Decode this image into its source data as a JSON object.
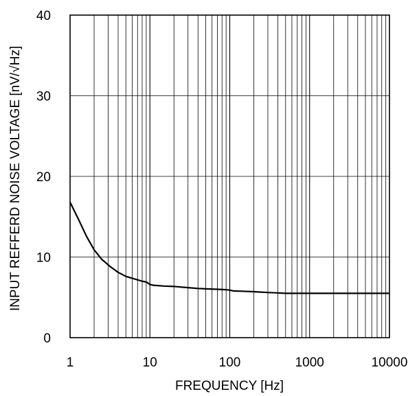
{
  "chart_data": {
    "type": "line",
    "title": "",
    "xlabel": "FREQUENCY [Hz]",
    "ylabel": "INPUT REFFERD NOISE VOLTAGE [nV/√Hz]",
    "x_scale": "log",
    "xlim": [
      1,
      10000
    ],
    "ylim": [
      0,
      40
    ],
    "x_ticks": [
      1,
      10,
      100,
      1000,
      10000
    ],
    "x_tick_labels": [
      "1",
      "10",
      "100",
      "1000",
      "10000"
    ],
    "y_ticks": [
      0,
      10,
      20,
      30,
      40
    ],
    "y_tick_labels": [
      "0",
      "10",
      "20",
      "30",
      "40"
    ],
    "grid": true,
    "line_color": "#000000",
    "series": [
      {
        "x": [
          1,
          1.3,
          1.6,
          2.0,
          2.5,
          3.2,
          4.0,
          5.0,
          6.3,
          8.0,
          9.0,
          10,
          11,
          15,
          20,
          30,
          40,
          50,
          70,
          90,
          100,
          110,
          150,
          200,
          300,
          400,
          500,
          700,
          1000,
          2000,
          5000,
          10000
        ],
        "y": [
          16.8,
          14.5,
          12.6,
          10.9,
          9.7,
          8.8,
          8.1,
          7.6,
          7.3,
          7.0,
          6.9,
          6.6,
          6.5,
          6.4,
          6.35,
          6.2,
          6.1,
          6.05,
          6.0,
          5.95,
          5.9,
          5.8,
          5.75,
          5.7,
          5.6,
          5.55,
          5.5,
          5.5,
          5.5,
          5.5,
          5.5,
          5.5
        ]
      }
    ]
  }
}
